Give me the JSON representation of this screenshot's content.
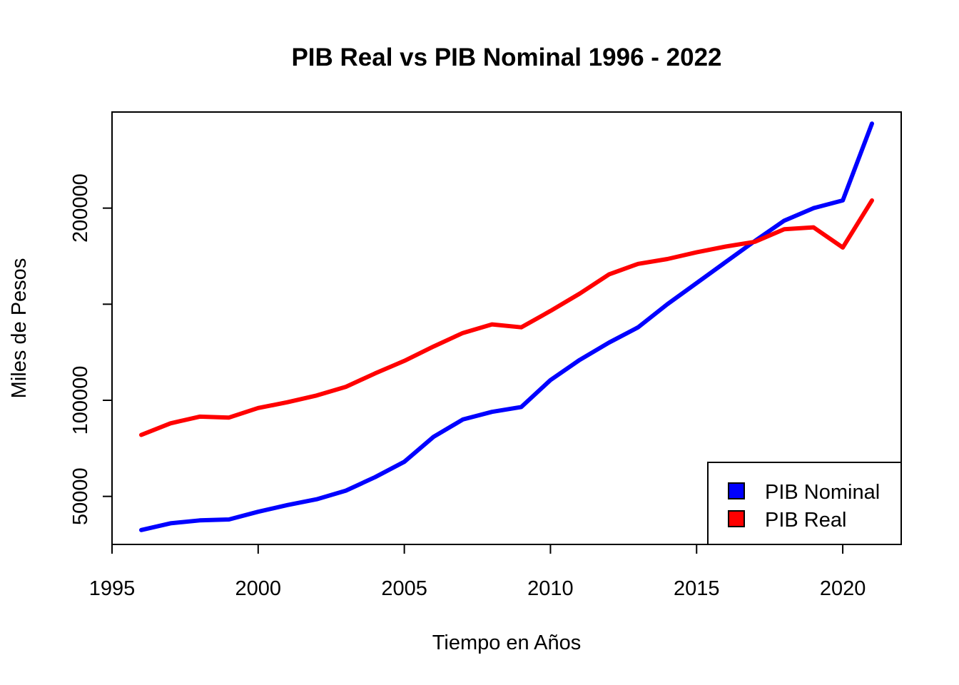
{
  "chart_data": {
    "type": "line",
    "title": "PIB Real vs PIB Nominal 1996 - 2022",
    "xlabel": "Tiempo en Años",
    "ylabel": "Miles de Pesos",
    "xlim": [
      1995,
      2022
    ],
    "ylim": [
      25000,
      250000
    ],
    "x_ticks": [
      1995,
      2000,
      2005,
      2010,
      2015,
      2020
    ],
    "y_ticks": [
      50000,
      100000,
      150000,
      200000
    ],
    "y_tick_labels": [
      "50000",
      "100000",
      "",
      "200000"
    ],
    "x": [
      1996,
      1997,
      1998,
      1999,
      2000,
      2001,
      2002,
      2003,
      2004,
      2005,
      2006,
      2007,
      2008,
      2009,
      2010,
      2011,
      2012,
      2013,
      2014,
      2015,
      2016,
      2017,
      2018,
      2019,
      2020,
      2021
    ],
    "series": [
      {
        "name": "PIB Nominal",
        "color": "#0000ff",
        "values": [
          32500,
          36000,
          37500,
          38000,
          42000,
          45500,
          48500,
          53000,
          60000,
          68000,
          81000,
          90000,
          94000,
          96500,
          110500,
          121000,
          130000,
          138000,
          150000,
          161000,
          172000,
          183000,
          193500,
          200000,
          204000,
          244000
        ]
      },
      {
        "name": "PIB Real",
        "color": "#ff0000",
        "values": [
          82000,
          88000,
          91500,
          91000,
          96000,
          99000,
          102500,
          107000,
          114000,
          120500,
          128000,
          135000,
          139500,
          138000,
          146500,
          155500,
          165500,
          171000,
          173500,
          177000,
          180000,
          182500,
          189000,
          190000,
          179500,
          204000
        ]
      }
    ],
    "legend": {
      "position": "bottom-right",
      "entries": [
        "PIB Nominal",
        "PIB Real"
      ]
    },
    "grid": false
  }
}
